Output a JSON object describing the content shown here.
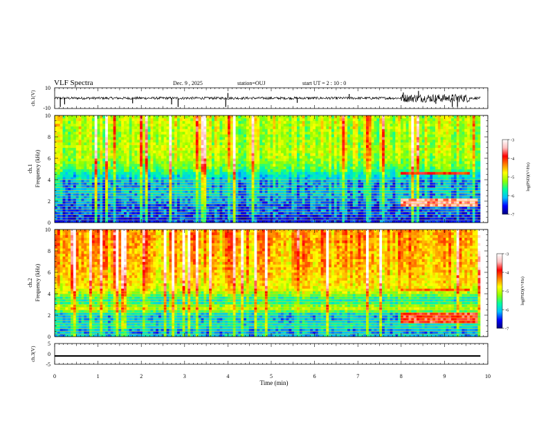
{
  "chart_data": {
    "type": "heatmap",
    "header": {
      "title": "VLF Spectra",
      "date": "Dec. 9 , 2025",
      "station": "station=OUJ",
      "start": "start UT = 2 : 10 : 0"
    },
    "x_axis": {
      "label": "Time (min)",
      "range": [
        0,
        10
      ],
      "data_extent": [
        0,
        9.83
      ],
      "ticks": [
        "0",
        "1",
        "2",
        "3",
        "4",
        "5",
        "6",
        "7",
        "8",
        "9",
        "10"
      ]
    },
    "panels": [
      {
        "id": "ch1_waveform",
        "kind": "waveform",
        "ylabel": "ch.1(V)",
        "ylim": [
          -10,
          10
        ],
        "ticks": [
          "10",
          "-10"
        ],
        "mean": 0.0,
        "noise_amplitude": 1.2,
        "burst_interval_min": [
          8.0,
          9.6
        ],
        "burst_amplitude": 4.0,
        "spikes": [
          {
            "t": 0.13,
            "v": -8.5
          },
          {
            "t": 0.23,
            "v": -6.0
          },
          {
            "t": 1.8,
            "v": -5.0
          },
          {
            "t": 2.7,
            "v": -6.0
          },
          {
            "t": 2.85,
            "v": -8.5
          },
          {
            "t": 3.95,
            "v": -8.5
          },
          {
            "t": 4.0,
            "v": 5.0
          },
          {
            "t": 5.6,
            "v": -4.5
          },
          {
            "t": 6.8,
            "v": 4.0
          },
          {
            "t": 8.05,
            "v": 5.5
          },
          {
            "t": 8.4,
            "v": 7.0
          },
          {
            "t": 8.8,
            "v": -5.5
          },
          {
            "t": 9.18,
            "v": -8.5
          },
          {
            "t": 9.3,
            "v": -8.5
          }
        ]
      },
      {
        "id": "ch1_spectrogram",
        "kind": "spectrogram",
        "ylabel_top": "ch.1",
        "ylabel": "Frequency (kHz)",
        "ylim": [
          0,
          10
        ],
        "ticks": [
          "0",
          "2",
          "4",
          "6",
          "8",
          "10"
        ],
        "background_profile": [
          [
            0,
            -6.5
          ],
          [
            0.5,
            -6.5
          ],
          [
            1.0,
            -6.3
          ],
          [
            1.5,
            -6.4
          ],
          [
            2.0,
            -6.2
          ],
          [
            2.5,
            -6.1
          ],
          [
            3.0,
            -6.0
          ],
          [
            3.5,
            -6.2
          ],
          [
            4.0,
            -6.0
          ],
          [
            4.5,
            -5.8
          ],
          [
            5.0,
            -5.4
          ],
          [
            6.0,
            -5.1
          ],
          [
            7.0,
            -5.0
          ],
          [
            8.0,
            -5.1
          ],
          [
            9.0,
            -5.0
          ],
          [
            10.0,
            -5.0
          ]
        ],
        "harmonic_lines_khz": [
          0.25,
          0.5,
          0.75,
          1.0,
          1.25,
          1.5,
          1.75,
          2.0,
          2.25,
          2.5,
          2.75,
          3.0,
          3.25,
          3.5,
          3.75,
          4.0
        ],
        "emissions": [
          {
            "t_start": 8.0,
            "t_end": 9.75,
            "f_low": 1.4,
            "f_high": 2.3,
            "level": -3.5
          },
          {
            "t_start": 8.0,
            "t_end": 9.6,
            "f_low": 4.4,
            "f_high": 4.7,
            "level": -4.0
          }
        ]
      },
      {
        "id": "ch2_spectrogram",
        "kind": "spectrogram",
        "ylabel_top": "ch.2",
        "ylabel": "Frequency (kHz)",
        "ylim": [
          0,
          10
        ],
        "ticks": [
          "0",
          "2",
          "4",
          "6",
          "8",
          "10"
        ],
        "background_profile": [
          [
            0,
            -6.0
          ],
          [
            0.5,
            -6.2
          ],
          [
            1.0,
            -5.8
          ],
          [
            1.5,
            -6.0
          ],
          [
            2.0,
            -6.1
          ],
          [
            2.3,
            -5.6
          ],
          [
            2.7,
            -4.9
          ],
          [
            3.0,
            -5.5
          ],
          [
            3.5,
            -5.8
          ],
          [
            4.0,
            -5.2
          ],
          [
            4.5,
            -4.8
          ],
          [
            5.0,
            -4.7
          ],
          [
            6.0,
            -4.6
          ],
          [
            7.0,
            -4.5
          ],
          [
            8.0,
            -4.5
          ],
          [
            9.0,
            -4.4
          ],
          [
            10.0,
            -4.4
          ]
        ],
        "harmonic_lines_khz": [
          0.25,
          0.5,
          0.75,
          1.0,
          1.25,
          1.5,
          1.75,
          2.0,
          2.25,
          2.5,
          2.75,
          3.0,
          3.25,
          3.5,
          3.75,
          4.0,
          4.25
        ],
        "emissions": [
          {
            "t_start": 8.0,
            "t_end": 9.75,
            "f_low": 1.2,
            "f_high": 2.2,
            "level": -3.8
          },
          {
            "t_start": 8.0,
            "t_end": 9.6,
            "f_low": 4.2,
            "f_high": 4.6,
            "level": -4.2
          }
        ]
      },
      {
        "id": "ch3_waveform",
        "kind": "waveform",
        "ylabel": "ch.3(V)",
        "ylim": [
          -5,
          5
        ],
        "ticks": [
          "5",
          "0",
          "-5"
        ],
        "mean": -1.0,
        "noise_amplitude": 0.0,
        "trace_thickness_v": 0.7
      }
    ],
    "colorbars": [
      {
        "label": "log(PSD)(V²/Hz)",
        "range": [
          -7,
          -3
        ],
        "ticks": [
          "-3",
          "-4",
          "-5",
          "-6",
          "-7"
        ],
        "colormap": [
          "#000080",
          "#0000ff",
          "#00c0ff",
          "#00ffa0",
          "#90ff00",
          "#ffff00",
          "#ff8000",
          "#ff0000",
          "#ffc0c0",
          "#ffffff"
        ]
      },
      {
        "label": "log(PSD)(V²/Hz)",
        "range": [
          -7,
          -3
        ],
        "ticks": [
          "-3",
          "-4",
          "-5",
          "-6",
          "-7"
        ],
        "colormap": [
          "#000080",
          "#0000ff",
          "#00c0ff",
          "#00ffa0",
          "#90ff00",
          "#ffff00",
          "#ff8000",
          "#ff0000",
          "#ffc0c0",
          "#ffffff"
        ]
      }
    ]
  }
}
